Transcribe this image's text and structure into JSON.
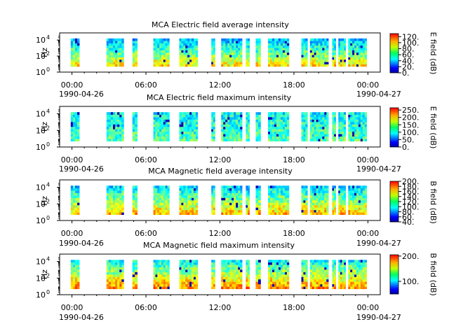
{
  "chart_data": [
    {
      "type": "heatmap",
      "title": "MCA  Electric field average intensity",
      "ylabel": "Hz",
      "ylim_log10": [
        0,
        4.6
      ],
      "y_ticks": [
        {
          "exp": 0,
          "label_base": "10",
          "label_exp": "0"
        },
        {
          "exp": 2,
          "label_base": "10",
          "label_exp": "2"
        },
        {
          "exp": 4,
          "label_base": "10",
          "label_exp": "4"
        }
      ],
      "x_ticks": [
        "00:00",
        "06:00",
        "12:00",
        "18:00",
        "00:00"
      ],
      "x_dates": [
        "1990-04-26",
        "1990-04-27"
      ],
      "colorbar": {
        "label": "E field (dB)",
        "range": [
          0,
          130
        ],
        "ticks": [
          "0.",
          "20.",
          "40.",
          "60.",
          "80.",
          "100.",
          "120."
        ],
        "tick_values": [
          0,
          20,
          40,
          60,
          80,
          100,
          120
        ]
      },
      "data_intervals_hours": [
        [
          -0.1,
          0.6
        ],
        [
          2.8,
          4.2
        ],
        [
          4.9,
          5.3
        ],
        [
          6.6,
          7.9
        ],
        [
          8.7,
          10.2
        ],
        [
          11.3,
          11.6
        ],
        [
          12.1,
          13.8
        ],
        [
          14.1,
          14.4
        ],
        [
          14.9,
          15.3
        ],
        [
          15.9,
          17.6
        ],
        [
          18.6,
          19.1
        ],
        [
          19.3,
          20.8
        ],
        [
          21.1,
          21.4
        ],
        [
          21.6,
          22.2
        ],
        [
          22.4,
          23.9
        ]
      ],
      "spectrum_db": {
        "low_freq": 85,
        "mid_freq": 60,
        "high_freq": 40
      }
    },
    {
      "type": "heatmap",
      "title": "MCA  Electric field maximum intensity",
      "ylabel": "Hz",
      "ylim_log10": [
        0,
        4.6
      ],
      "y_ticks": [
        {
          "exp": 0,
          "label_base": "10",
          "label_exp": "0"
        },
        {
          "exp": 2,
          "label_base": "10",
          "label_exp": "2"
        },
        {
          "exp": 4,
          "label_base": "10",
          "label_exp": "4"
        }
      ],
      "x_ticks": [
        "00:00",
        "06:00",
        "12:00",
        "18:00",
        "00:00"
      ],
      "x_dates": [
        "1990-04-26",
        "1990-04-27"
      ],
      "colorbar": {
        "label": "E field (dB)",
        "range": [
          0,
          265
        ],
        "ticks": [
          "0.",
          "50.",
          "100.",
          "150.",
          "200.",
          "250."
        ],
        "tick_values": [
          0,
          50,
          100,
          150,
          200,
          250
        ]
      },
      "data_intervals_hours": [
        [
          -0.1,
          0.6
        ],
        [
          2.8,
          4.2
        ],
        [
          4.9,
          5.3
        ],
        [
          6.6,
          7.9
        ],
        [
          8.7,
          10.2
        ],
        [
          11.3,
          11.6
        ],
        [
          12.1,
          13.8
        ],
        [
          14.1,
          14.4
        ],
        [
          14.9,
          15.3
        ],
        [
          15.9,
          17.6
        ],
        [
          18.6,
          19.1
        ],
        [
          19.3,
          20.8
        ],
        [
          21.1,
          21.4
        ],
        [
          21.6,
          22.2
        ],
        [
          22.4,
          23.9
        ]
      ],
      "spectrum_db": {
        "low_freq": 120,
        "mid_freq": 110,
        "high_freq": 100
      }
    },
    {
      "type": "heatmap",
      "title": "MCA  Magnetic field average intensity",
      "ylabel": "Hz",
      "ylim_log10": [
        0,
        4.6
      ],
      "y_ticks": [
        {
          "exp": 0,
          "label_base": "10",
          "label_exp": "0"
        },
        {
          "exp": 2,
          "label_base": "10",
          "label_exp": "2"
        },
        {
          "exp": 4,
          "label_base": "10",
          "label_exp": "4"
        }
      ],
      "x_ticks": [
        "00:00",
        "06:00",
        "12:00",
        "18:00",
        "00:00"
      ],
      "x_dates": [
        "1990-04-26",
        "1990-04-27"
      ],
      "colorbar": {
        "label": "B field (dB)",
        "range": [
          40,
          200
        ],
        "ticks": [
          "40.",
          "60.",
          "80.",
          "100.",
          "120.",
          "140.",
          "160.",
          "180.",
          "200."
        ],
        "tick_values": [
          40,
          60,
          80,
          100,
          120,
          140,
          160,
          180,
          200
        ]
      },
      "data_intervals_hours": [
        [
          -0.1,
          0.6
        ],
        [
          2.8,
          4.2
        ],
        [
          4.9,
          5.3
        ],
        [
          6.6,
          7.9
        ],
        [
          8.7,
          10.2
        ],
        [
          11.3,
          11.6
        ],
        [
          12.1,
          13.8
        ],
        [
          14.1,
          14.4
        ],
        [
          14.9,
          15.3
        ],
        [
          15.9,
          17.6
        ],
        [
          18.6,
          19.1
        ],
        [
          19.3,
          20.8
        ],
        [
          21.1,
          21.4
        ],
        [
          21.6,
          22.2
        ],
        [
          22.4,
          23.9
        ]
      ],
      "spectrum_db": {
        "low_freq": 150,
        "mid_freq": 120,
        "high_freq": 95
      }
    },
    {
      "type": "heatmap",
      "title": "MCA  Magnetic field maximum intensity",
      "ylabel": "Hz",
      "ylim_log10": [
        0,
        4.6
      ],
      "y_ticks": [
        {
          "exp": 0,
          "label_base": "10",
          "label_exp": "0"
        },
        {
          "exp": 2,
          "label_base": "10",
          "label_exp": "2"
        },
        {
          "exp": 4,
          "label_base": "10",
          "label_exp": "4"
        }
      ],
      "x_ticks": [
        "00:00",
        "06:00",
        "12:00",
        "18:00",
        "00:00"
      ],
      "x_dates": [
        "1990-04-26",
        "1990-04-27"
      ],
      "colorbar": {
        "label": "B field (dB)",
        "range": [
          50,
          205
        ],
        "ticks": [
          "100.",
          "200."
        ],
        "tick_values": [
          100,
          200
        ]
      },
      "data_intervals_hours": [
        [
          -0.1,
          0.6
        ],
        [
          2.8,
          4.2
        ],
        [
          4.9,
          5.3
        ],
        [
          6.6,
          7.9
        ],
        [
          8.7,
          10.2
        ],
        [
          11.3,
          11.6
        ],
        [
          12.1,
          13.8
        ],
        [
          14.1,
          14.4
        ],
        [
          14.9,
          15.3
        ],
        [
          15.9,
          17.6
        ],
        [
          18.6,
          19.1
        ],
        [
          19.3,
          20.8
        ],
        [
          21.1,
          21.4
        ],
        [
          21.6,
          22.2
        ],
        [
          22.4,
          23.9
        ]
      ],
      "spectrum_db": {
        "low_freq": 165,
        "mid_freq": 135,
        "high_freq": 110
      }
    }
  ]
}
